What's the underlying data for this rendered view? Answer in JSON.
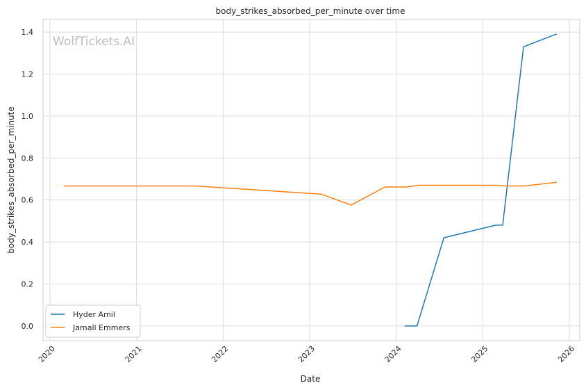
{
  "chart_data": {
    "type": "line",
    "title": "body_strikes_absorbed_per_minute over time",
    "xlabel": "Date",
    "ylabel": "body_strikes_absorbed_per_minute",
    "xlim": [
      2019.92,
      2026.12
    ],
    "ylim": [
      -0.07,
      1.46
    ],
    "x_ticks": [
      2020,
      2021,
      2022,
      2023,
      2024,
      2025,
      2026
    ],
    "x_tick_labels": [
      "2020",
      "2021",
      "2022",
      "2023",
      "2024",
      "2025",
      "2026"
    ],
    "y_ticks": [
      0.0,
      0.2,
      0.4,
      0.6,
      0.8,
      1.0,
      1.2,
      1.4
    ],
    "y_tick_labels": [
      "0.0",
      "0.2",
      "0.4",
      "0.6",
      "0.8",
      "1.0",
      "1.2",
      "1.4"
    ],
    "grid": true,
    "legend_position": "bottom-left",
    "watermark": "WolfTickets.AI",
    "series": [
      {
        "name": "Hyder Amil",
        "color": "#1f77b4",
        "x": [
          2024.1,
          2024.24,
          2024.55,
          2025.15,
          2025.23,
          2025.47,
          2025.85
        ],
        "y": [
          0.0,
          0.0,
          0.42,
          0.48,
          0.48,
          1.33,
          1.39
        ]
      },
      {
        "name": "Jamall Emmers",
        "color": "#ff7f0e",
        "x": [
          2020.17,
          2021.67,
          2023.13,
          2023.48,
          2023.87,
          2024.12,
          2024.25,
          2025.15,
          2025.28,
          2025.48,
          2025.85
        ],
        "y": [
          0.667,
          0.667,
          0.628,
          0.576,
          0.662,
          0.662,
          0.67,
          0.67,
          0.667,
          0.667,
          0.684
        ]
      }
    ]
  }
}
